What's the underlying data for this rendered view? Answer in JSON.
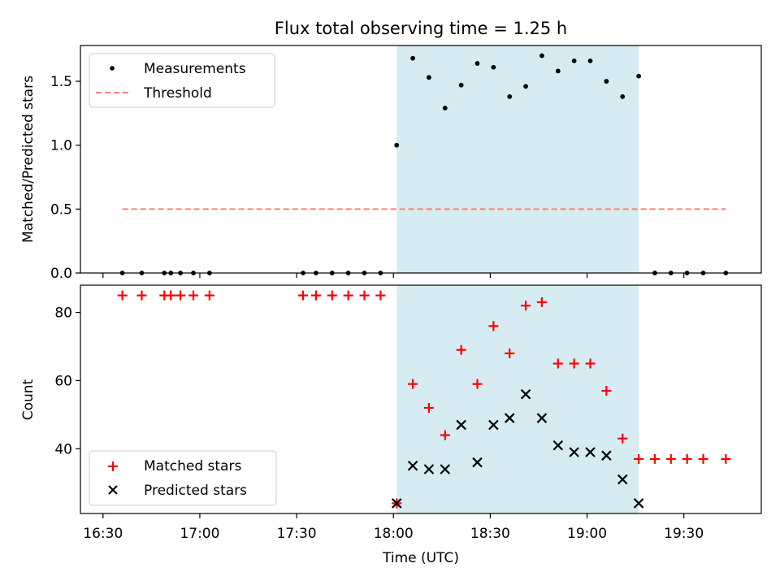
{
  "figure": {
    "title": "Flux total observing time = 1.25 h"
  },
  "colors": {
    "shade": "#add8e6",
    "threshold": "#ff7f7f",
    "matched": "#ff0000",
    "predicted": "#000000",
    "measure": "#000000"
  },
  "chart_data": [
    {
      "type": "scatter",
      "panel": "top",
      "xlabel": "",
      "ylabel": "Matched/Predicted stars",
      "ylim": [
        0,
        1.78
      ],
      "yticks": [
        0.0,
        0.5,
        1.0,
        1.5
      ],
      "ytick_labels": [
        "0.0",
        "0.5",
        "1.0",
        "1.5"
      ],
      "xlim": [
        "16:23",
        "19:54"
      ],
      "legend_position": "top-left",
      "shaded_region": {
        "from": "18:01",
        "to": "19:16"
      },
      "threshold": {
        "name": "Threshold",
        "value": 0.5,
        "from": "16:36",
        "to": "19:43"
      },
      "series": [
        {
          "name": "Measurements",
          "x": [
            "16:36",
            "16:42",
            "16:49",
            "16:51",
            "16:54",
            "16:58",
            "17:03",
            "17:32",
            "17:36",
            "17:41",
            "17:46",
            "17:51",
            "17:56",
            "18:01",
            "18:06",
            "18:11",
            "18:16",
            "18:21",
            "18:26",
            "18:31",
            "18:36",
            "18:41",
            "18:46",
            "18:51",
            "18:56",
            "19:01",
            "19:06",
            "19:11",
            "19:16",
            "19:21",
            "19:26",
            "19:31",
            "19:36",
            "19:43"
          ],
          "y": [
            0,
            0,
            0,
            0,
            0,
            0,
            0,
            0,
            0,
            0,
            0,
            0,
            0,
            1.0,
            1.68,
            1.53,
            1.29,
            1.47,
            1.64,
            1.61,
            1.38,
            1.46,
            1.7,
            1.58,
            1.66,
            1.66,
            1.5,
            1.38,
            1.54,
            0,
            0,
            0,
            0,
            0
          ]
        }
      ]
    },
    {
      "type": "scatter",
      "panel": "bottom",
      "xlabel": "Time (UTC)",
      "ylabel": "Count",
      "ylim": [
        21,
        88
      ],
      "yticks": [
        40,
        60,
        80
      ],
      "ytick_labels": [
        "40",
        "60",
        "80"
      ],
      "xlim": [
        "16:23",
        "19:54"
      ],
      "xticks": [
        "16:30",
        "17:00",
        "17:30",
        "18:00",
        "18:30",
        "19:00",
        "19:30"
      ],
      "legend_position": "bottom-left",
      "shaded_region": {
        "from": "18:01",
        "to": "19:16"
      },
      "series": [
        {
          "name": "Matched stars",
          "marker": "plus",
          "x": [
            "16:36",
            "16:42",
            "16:49",
            "16:51",
            "16:54",
            "16:58",
            "17:03",
            "17:32",
            "17:36",
            "17:41",
            "17:46",
            "17:51",
            "17:56",
            "18:01",
            "18:06",
            "18:11",
            "18:16",
            "18:21",
            "18:26",
            "18:31",
            "18:36",
            "18:41",
            "18:46",
            "18:51",
            "18:56",
            "19:01",
            "19:06",
            "19:11",
            "19:16",
            "19:21",
            "19:26",
            "19:31",
            "19:36",
            "19:43"
          ],
          "y": [
            85,
            85,
            85,
            85,
            85,
            85,
            85,
            85,
            85,
            85,
            85,
            85,
            85,
            24,
            59,
            52,
            44,
            69,
            59,
            76,
            68,
            82,
            83,
            65,
            65,
            65,
            57,
            43,
            37,
            37,
            37,
            37,
            37,
            37
          ]
        },
        {
          "name": "Predicted stars",
          "marker": "x",
          "x": [
            "18:01",
            "18:06",
            "18:11",
            "18:16",
            "18:21",
            "18:26",
            "18:31",
            "18:36",
            "18:41",
            "18:46",
            "18:51",
            "18:56",
            "19:01",
            "19:06",
            "19:11",
            "19:16"
          ],
          "y": [
            24,
            35,
            34,
            34,
            47,
            36,
            47,
            49,
            56,
            49,
            41,
            39,
            39,
            38,
            31,
            24
          ]
        }
      ]
    }
  ]
}
